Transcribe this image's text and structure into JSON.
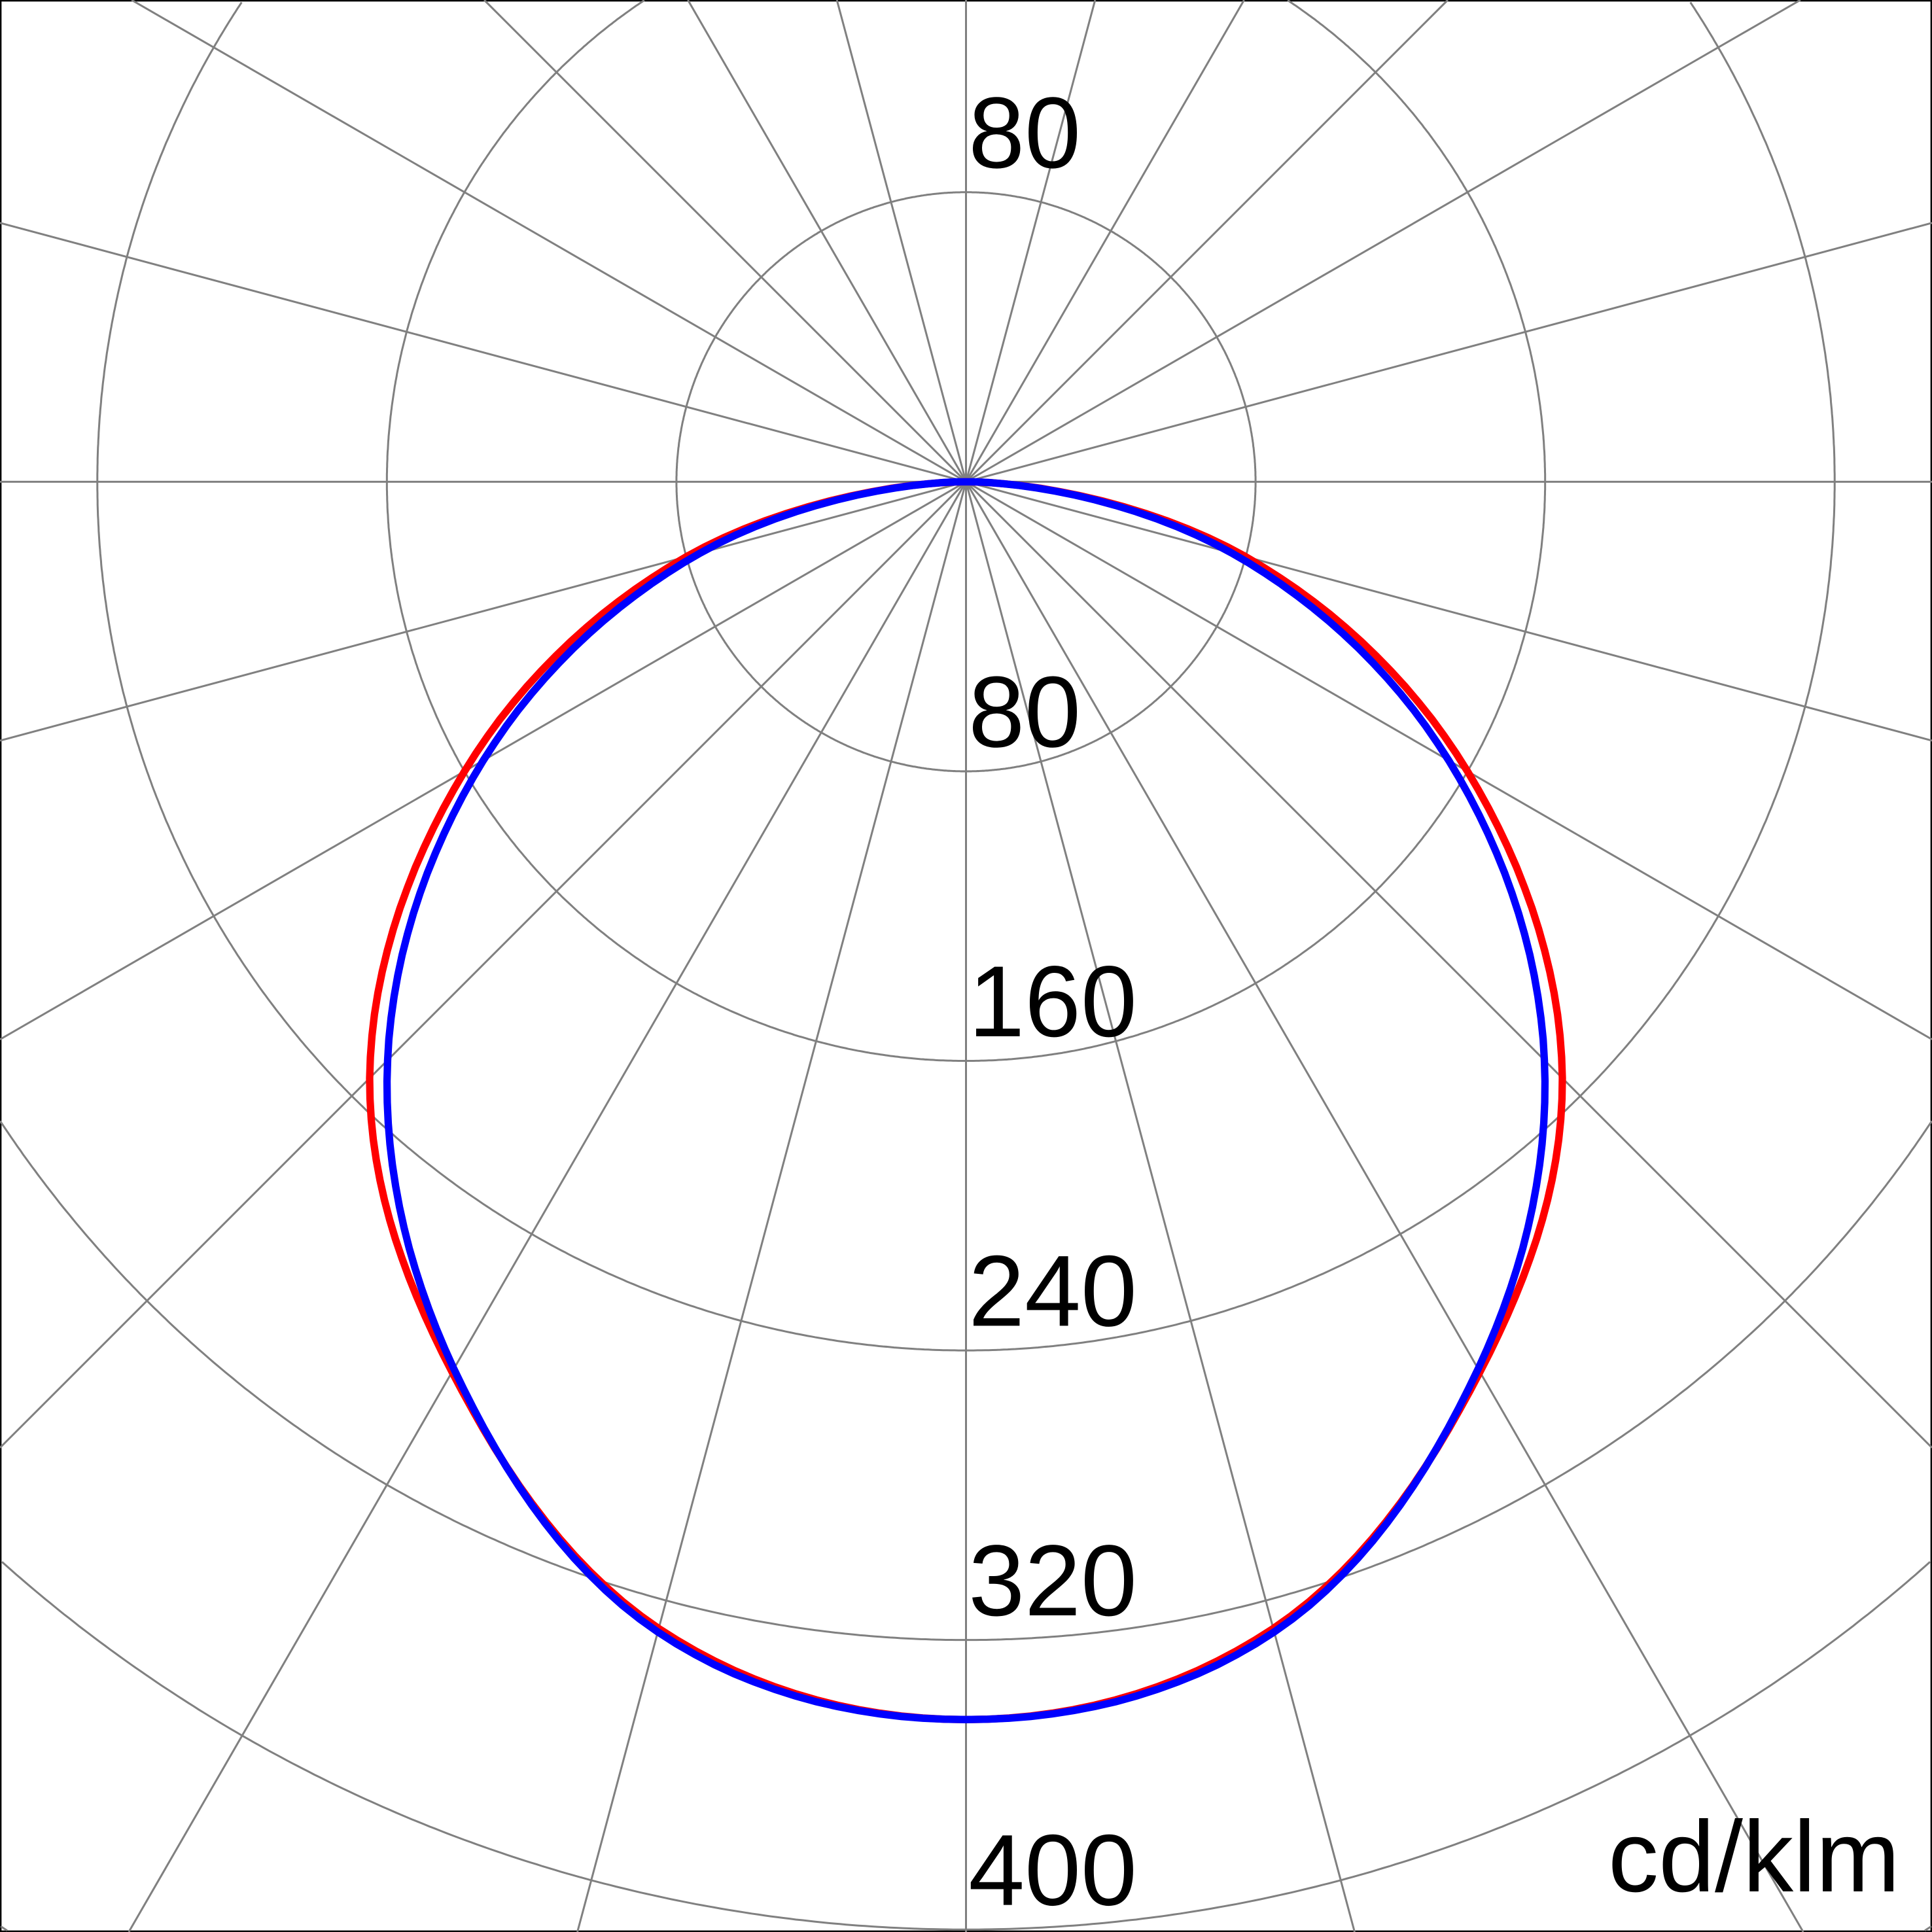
{
  "chart_data": {
    "type": "polar",
    "unit_label": "cd/klm",
    "radial_ticks": [
      80,
      160,
      240,
      320,
      400
    ],
    "top_tick_label": "80",
    "radial_max": 480,
    "angle_step_deg": 15,
    "grid": true,
    "angles_deg": [
      0,
      15,
      30,
      45,
      60,
      75,
      90
    ],
    "series": [
      {
        "color": "#ff0000",
        "values": [
          342,
          328,
          284,
          233,
          160,
          80,
          0
        ]
      },
      {
        "color": "#0000ff",
        "values": [
          342,
          329,
          283,
          226,
          154,
          76,
          0
        ]
      }
    ]
  }
}
